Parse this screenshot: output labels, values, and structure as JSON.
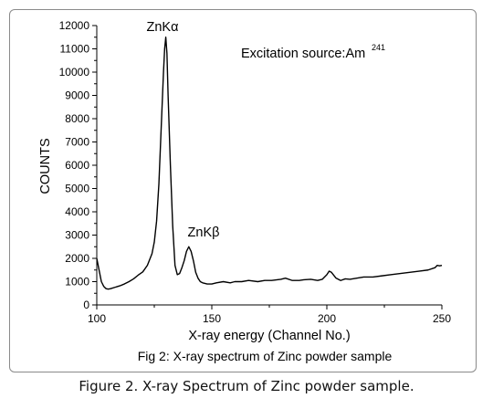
{
  "chart_data": {
    "type": "line",
    "title": "",
    "xlabel": "X-ray energy (Channel No.)",
    "ylabel": "COUNTS",
    "xlim": [
      100,
      250
    ],
    "ylim": [
      0,
      12000
    ],
    "x_ticks": [
      100,
      150,
      200,
      250
    ],
    "y_ticks": [
      0,
      1000,
      2000,
      3000,
      4000,
      5000,
      6000,
      7000,
      8000,
      9000,
      10000,
      11000,
      12000
    ],
    "grid": false,
    "legend": "none",
    "line_color": "#000000",
    "series": [
      {
        "x": [
          100,
          101,
          102,
          103,
          104,
          105,
          106,
          108,
          110,
          112,
          114,
          116,
          118,
          120,
          122,
          124,
          125,
          126,
          127,
          128,
          129,
          129.5,
          130,
          130.5,
          131,
          132,
          133,
          134,
          135,
          136,
          137,
          138,
          139,
          140,
          141,
          142,
          143,
          144,
          145,
          146,
          148,
          150,
          152,
          155,
          158,
          160,
          163,
          166,
          170,
          173,
          176,
          180,
          182,
          185,
          188,
          190,
          193,
          196,
          198,
          200,
          201,
          202,
          204,
          206,
          208,
          210,
          213,
          216,
          220,
          224,
          228,
          232,
          236,
          240,
          244,
          247,
          248,
          249,
          250
        ],
        "y": [
          2000,
          1500,
          1000,
          800,
          700,
          680,
          700,
          760,
          820,
          900,
          1000,
          1120,
          1280,
          1420,
          1700,
          2200,
          2700,
          3600,
          5200,
          7600,
          10000,
          11000,
          11500,
          10800,
          9000,
          6000,
          3400,
          1700,
          1300,
          1350,
          1600,
          1900,
          2300,
          2500,
          2300,
          1900,
          1400,
          1150,
          1000,
          950,
          900,
          900,
          950,
          1000,
          950,
          1000,
          1000,
          1050,
          1000,
          1050,
          1050,
          1100,
          1150,
          1050,
          1050,
          1080,
          1100,
          1050,
          1100,
          1300,
          1450,
          1400,
          1150,
          1050,
          1120,
          1100,
          1150,
          1200,
          1200,
          1250,
          1300,
          1350,
          1400,
          1450,
          1500,
          1600,
          1700,
          1680,
          1700
        ]
      }
    ],
    "annotations": [
      {
        "text": "ZnKα",
        "x": 130,
        "y": 11600
      },
      {
        "text": "ZnKβ",
        "x": 141,
        "y": 2600
      },
      {
        "text": "Excitation source:Am",
        "superscript": "241"
      }
    ],
    "caption": "Fig 2: X-ray spectrum of  Zinc powder sample"
  },
  "page_caption": "Figure 2. X-ray Spectrum of Zinc powder sample."
}
